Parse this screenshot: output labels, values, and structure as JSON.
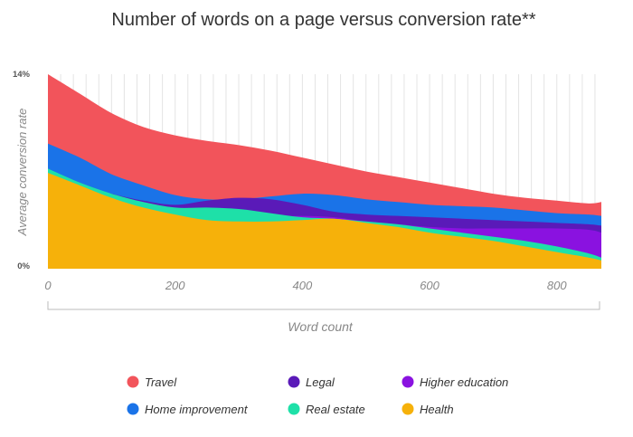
{
  "chart_data": {
    "type": "area",
    "title": "Number of words on a page versus conversion rate**",
    "xlabel": "Word count",
    "ylabel": "Average conversion rate",
    "xlim": [
      0,
      870
    ],
    "ylim": [
      0,
      14
    ],
    "x_ticks": [
      {
        "value": 0,
        "label": "0"
      },
      {
        "value": 200,
        "label": "200"
      },
      {
        "value": 400,
        "label": "400"
      },
      {
        "value": 600,
        "label": "600"
      },
      {
        "value": 800,
        "label": "800"
      }
    ],
    "y_ticks": [
      {
        "value": 0,
        "label": "0%"
      },
      {
        "value": 14,
        "label": "14%"
      }
    ],
    "x": [
      0,
      50,
      100,
      150,
      200,
      250,
      300,
      350,
      400,
      450,
      500,
      550,
      600,
      650,
      700,
      750,
      800,
      850,
      870
    ],
    "series": [
      {
        "name": "Travel",
        "color": "#f2545b",
        "values": [
          14.0,
          12.6,
          11.2,
          10.2,
          9.6,
          9.2,
          8.9,
          8.5,
          8.0,
          7.5,
          7.0,
          6.6,
          6.2,
          5.8,
          5.4,
          5.1,
          4.9,
          4.7,
          4.8
        ]
      },
      {
        "name": "Home improvement",
        "color": "#1a73e8",
        "values": [
          9.0,
          8.0,
          6.8,
          6.0,
          5.3,
          5.0,
          5.0,
          5.2,
          5.4,
          5.3,
          5.0,
          4.8,
          4.6,
          4.5,
          4.4,
          4.2,
          4.0,
          3.9,
          3.8
        ]
      },
      {
        "name": "Legal",
        "color": "#5a1ab8",
        "values": [
          6.6,
          6.0,
          5.4,
          4.9,
          4.6,
          4.9,
          5.1,
          5.0,
          4.6,
          4.1,
          3.9,
          3.8,
          3.7,
          3.6,
          3.5,
          3.4,
          3.3,
          3.2,
          3.1
        ]
      },
      {
        "name": "Higher education",
        "color": "#8a12e0",
        "values": [
          6.5,
          5.9,
          5.3,
          4.8,
          4.3,
          3.7,
          3.6,
          3.7,
          3.8,
          3.7,
          3.4,
          3.2,
          3.0,
          2.9,
          2.9,
          2.9,
          2.9,
          2.8,
          2.6
        ]
      },
      {
        "name": "Real estate",
        "color": "#1ee0a8",
        "values": [
          7.2,
          6.2,
          5.4,
          4.8,
          4.4,
          4.4,
          4.3,
          4.0,
          3.7,
          3.6,
          3.4,
          3.2,
          2.9,
          2.6,
          2.3,
          2.0,
          1.6,
          1.1,
          0.8
        ]
      },
      {
        "name": "Health",
        "color": "#f6b10a",
        "values": [
          6.9,
          6.0,
          5.1,
          4.4,
          3.9,
          3.5,
          3.4,
          3.4,
          3.5,
          3.6,
          3.3,
          3.0,
          2.6,
          2.3,
          2.0,
          1.6,
          1.2,
          0.8,
          0.6
        ]
      }
    ],
    "legend_position": "bottom",
    "grid": true
  }
}
